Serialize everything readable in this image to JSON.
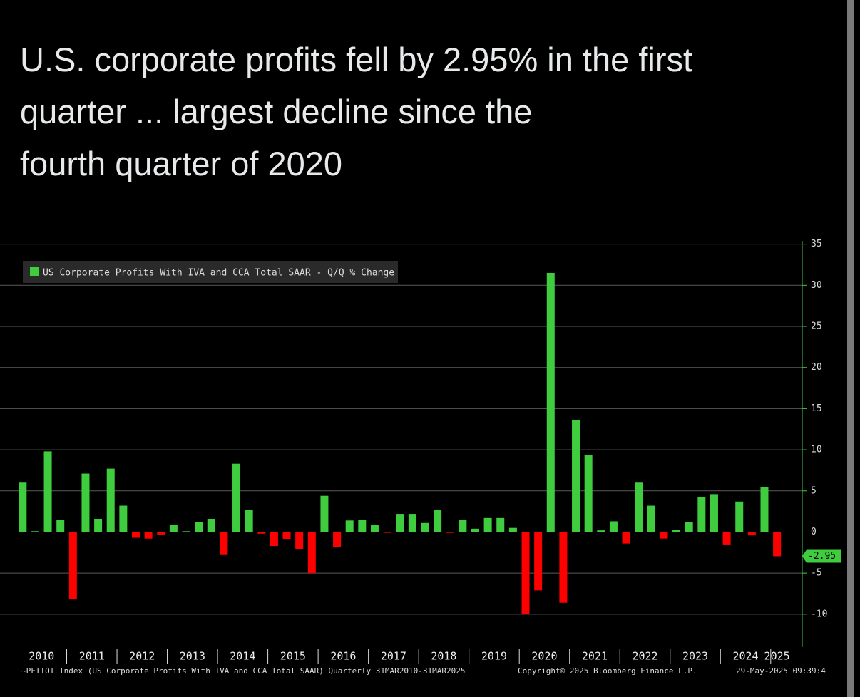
{
  "title": "U.S. corporate profits fell by 2.95% in the first quarter ... largest decline since the fourth quarter of 2020",
  "chart_data": {
    "type": "bar",
    "legend": "US Corporate Profits With IVA and CCA Total SAAR - Q/Q % Change",
    "footer_left": "~PFTTOT Index (US Corporate Profits With IVA and CCA Total SAAR) Quarterly 31MAR2010-31MAR2025",
    "footer_center": "Copyright© 2025 Bloomberg Finance L.P.",
    "footer_right": "29-May-2025 09:39:4",
    "categories": [
      "2010",
      null,
      null,
      null,
      "2011",
      null,
      null,
      null,
      "2012",
      null,
      null,
      null,
      "2013",
      null,
      null,
      null,
      "2014",
      null,
      null,
      null,
      "2015",
      null,
      null,
      null,
      "2016",
      null,
      null,
      null,
      "2017",
      null,
      null,
      null,
      "2018",
      null,
      null,
      null,
      "2019",
      null,
      null,
      null,
      "2020",
      null,
      null,
      null,
      "2021",
      null,
      null,
      null,
      "2022",
      null,
      null,
      null,
      "2023",
      null,
      null,
      null,
      "2024",
      null,
      null,
      null,
      "2025"
    ],
    "values": [
      6.0,
      0.1,
      9.8,
      1.5,
      -8.2,
      7.1,
      1.6,
      7.7,
      3.2,
      -0.7,
      -0.8,
      -0.3,
      0.9,
      0.1,
      1.2,
      1.6,
      -2.8,
      8.3,
      2.7,
      -0.2,
      -1.7,
      -0.9,
      -2.1,
      -5.0,
      4.4,
      -1.8,
      1.4,
      1.5,
      0.9,
      -0.1,
      2.2,
      2.2,
      1.1,
      2.7,
      -0.1,
      1.5,
      0.4,
      1.7,
      1.7,
      0.5,
      -10.0,
      -7.1,
      31.5,
      -8.6,
      13.6,
      9.4,
      0.2,
      1.3,
      -1.4,
      6.0,
      3.2,
      -0.8,
      0.3,
      1.2,
      4.2,
      4.6,
      -1.6,
      3.7,
      -0.4,
      5.5,
      -2.95
    ],
    "positive_color": "#3fcc3f",
    "negative_color": "#ff0000",
    "ylim": [
      -14,
      35.4
    ],
    "yticks": [
      -10,
      -5,
      0,
      5,
      10,
      15,
      20,
      25,
      30,
      35
    ],
    "grid": true
  }
}
